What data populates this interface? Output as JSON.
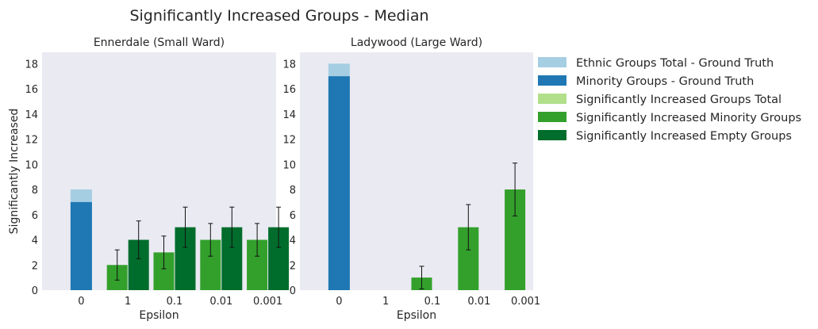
{
  "figure_title": "Significantly Increased Groups  - Median",
  "legend": [
    {
      "label": "Ethnic Groups Total - Ground Truth",
      "color": "#a6cee3"
    },
    {
      "label": "Minority Groups - Ground Truth",
      "color": "#1f78b4"
    },
    {
      "label": "Significantly Increased Groups Total",
      "color": "#b2df8a"
    },
    {
      "label": "Significantly Increased Minority Groups",
      "color": "#33a02c"
    },
    {
      "label": "Significantly Increased Empty Groups",
      "color": "#006d2c"
    }
  ],
  "chart_data": [
    {
      "type": "bar",
      "title": "Ennerdale (Small Ward)",
      "xlabel": "Epsilon",
      "ylabel": "Significantly Increased",
      "categories": [
        "0",
        "1",
        "0.1",
        "0.01",
        "0.001"
      ],
      "ylim": [
        0,
        18.9
      ],
      "yticks": [
        0,
        2,
        4,
        6,
        8,
        10,
        12,
        14,
        16,
        18
      ],
      "grid": false,
      "ground_truth": {
        "ethnic_total": 8,
        "minority": 7
      },
      "series": [
        {
          "name": "Significantly Increased Minority Groups",
          "values": [
            null,
            2,
            3,
            4,
            4
          ],
          "err": [
            null,
            1.2,
            1.3,
            1.3,
            1.3
          ]
        },
        {
          "name": "Significantly Increased Empty Groups",
          "values": [
            null,
            4,
            5,
            5,
            5
          ],
          "err": [
            null,
            1.5,
            1.6,
            1.6,
            1.6
          ]
        }
      ]
    },
    {
      "type": "bar",
      "title": "Ladywood (Large Ward)",
      "xlabel": "Epsilon",
      "ylabel": "",
      "categories": [
        "0",
        "1",
        "0.1",
        "0.01",
        "0.001"
      ],
      "ylim": [
        0,
        18.9
      ],
      "yticks": [
        0,
        2,
        4,
        6,
        8,
        10,
        12,
        14,
        16,
        18
      ],
      "grid": false,
      "ground_truth": {
        "ethnic_total": 18,
        "minority": 17
      },
      "series": [
        {
          "name": "Significantly Increased Minority Groups",
          "values": [
            null,
            0,
            1,
            5,
            8
          ],
          "err": [
            null,
            0,
            0.9,
            1.8,
            2.1
          ]
        },
        {
          "name": "Significantly Increased Empty Groups",
          "values": [
            null,
            0,
            0,
            0,
            0
          ],
          "err": [
            null,
            0,
            0,
            0,
            0
          ]
        }
      ]
    }
  ]
}
